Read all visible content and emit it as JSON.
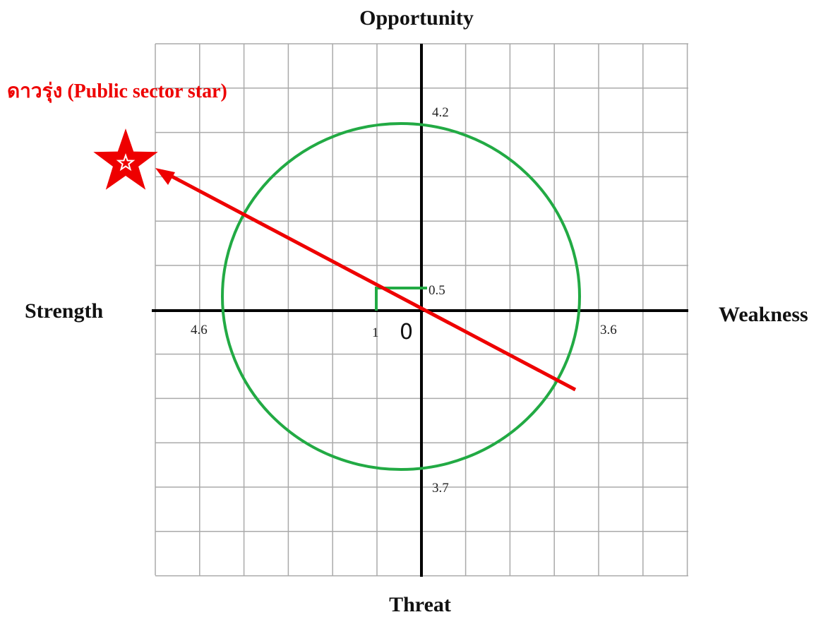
{
  "axes": {
    "top": "Opportunity",
    "left": "Strength",
    "right": "Weakness",
    "bottom": "Threat"
  },
  "title": "ดาวรุ่ง (Public sector star)",
  "scores": {
    "opportunity": "4.2",
    "strength": "4.6",
    "weakness": "3.6",
    "threat": "3.7",
    "y_result": "0.5",
    "x_result": "1",
    "origin": "0"
  }
}
